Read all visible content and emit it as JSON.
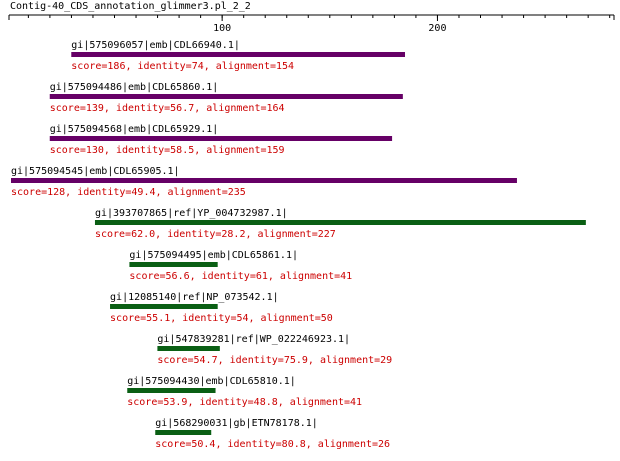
{
  "title": "Contig-40_CDS_annotation_glimmer3.pl_2_2",
  "axis": {
    "min": 1,
    "max": 282,
    "ticks": [
      {
        "value": 100,
        "label": "100"
      },
      {
        "value": 200,
        "label": "200"
      }
    ],
    "minor_step": 10
  },
  "colors": {
    "axis": "#000000",
    "label": "#000000",
    "score": "#cc0000",
    "purple": "#660066",
    "green": "#0a5f14"
  },
  "hits": [
    {
      "name": "gi|575096057|emb|CDL66940.1|",
      "score": "score=186, identity=74, alignment=154",
      "start": 29,
      "end": 184,
      "color": "purple"
    },
    {
      "name": "gi|575094486|emb|CDL65860.1|",
      "score": "score=139, identity=56.7, alignment=164",
      "start": 19,
      "end": 183,
      "color": "purple"
    },
    {
      "name": "gi|575094568|emb|CDL65929.1|",
      "score": "score=130, identity=58.5, alignment=159",
      "start": 19,
      "end": 178,
      "color": "purple"
    },
    {
      "name": "gi|575094545|emb|CDL65905.1|",
      "score": "score=128, identity=49.4, alignment=235",
      "start": 1,
      "end": 236,
      "color": "purple"
    },
    {
      "name": "gi|393707865|ref|YP_004732987.1|",
      "score": "score=62.0, identity=28.2, alignment=227",
      "start": 40,
      "end": 268,
      "color": "green"
    },
    {
      "name": "gi|575094495|emb|CDL65861.1|",
      "score": "score=56.6, identity=61, alignment=41",
      "start": 56,
      "end": 97,
      "color": "green"
    },
    {
      "name": "gi|12085140|ref|NP_073542.1|",
      "score": "score=55.1, identity=54, alignment=50",
      "start": 47,
      "end": 97,
      "color": "green"
    },
    {
      "name": "gi|547839281|ref|WP_022246923.1|",
      "score": "score=54.7, identity=75.9, alignment=29",
      "start": 69,
      "end": 98,
      "color": "green"
    },
    {
      "name": "gi|575094430|emb|CDL65810.1|",
      "score": "score=53.9, identity=48.8, alignment=41",
      "start": 55,
      "end": 96,
      "color": "green"
    },
    {
      "name": "gi|568290031|gb|ETN78178.1|",
      "score": "score=50.4, identity=80.8, alignment=26",
      "start": 68,
      "end": 94,
      "color": "green"
    }
  ]
}
